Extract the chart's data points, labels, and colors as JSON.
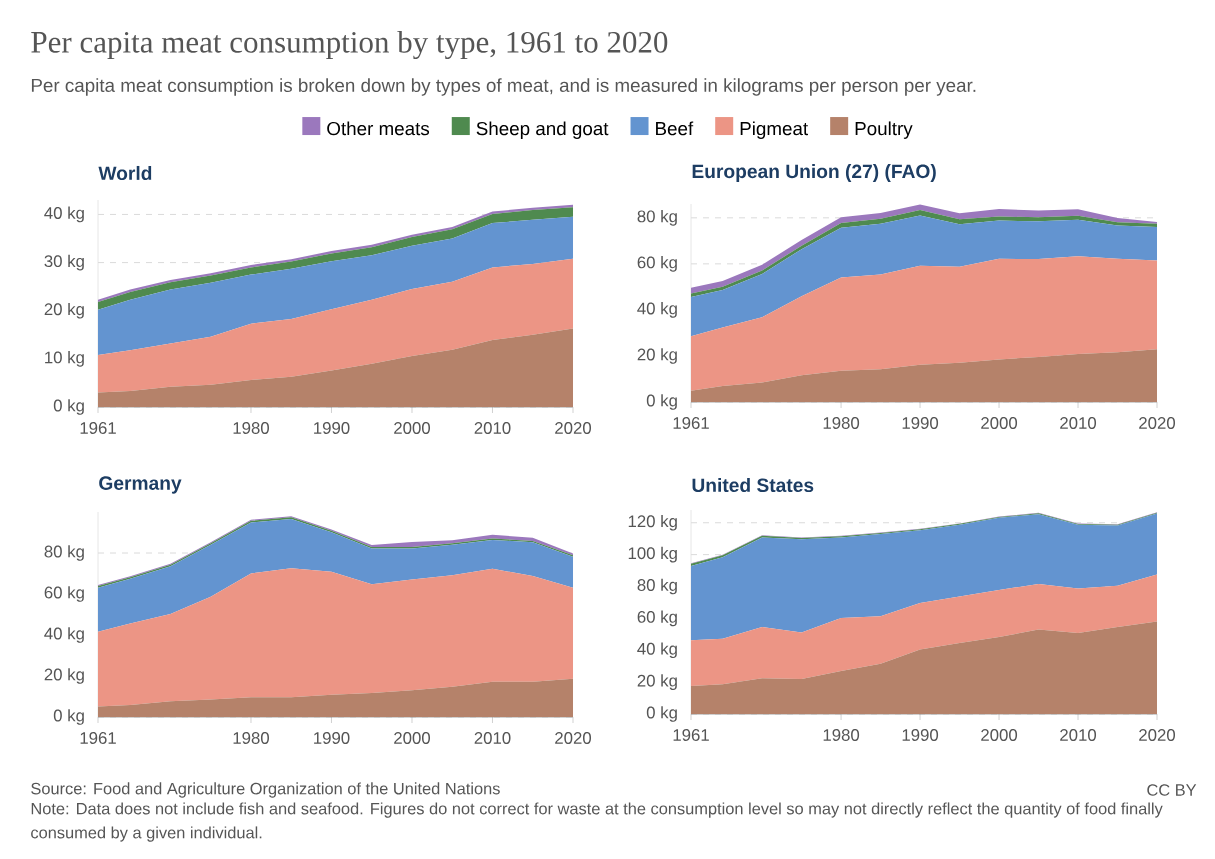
{
  "chart_data": [
    {
      "type": "area",
      "title": "World",
      "stacked": true,
      "grid": "y",
      "legend": "top",
      "annotations": [
        "Per capita meat consumption by type, 1961 to 2020",
        "Per capita meat consumption is broken down by types of meat, and is measured in kilograms per person per year.",
        "Source: Food and Agriculture Organization of the United Nations",
        "CC BY",
        "Note: Data does not include fish and seafood. Figures do not correct for waste at the consumption level so may not directly reflect the quantity of food finally consumed by a given individual."
      ],
      "x": [
        1961,
        1965,
        1970,
        1975,
        1980,
        1985,
        1990,
        1995,
        2000,
        2005,
        2010,
        2015,
        2020
      ],
      "xlim": [
        1961,
        2020
      ],
      "xticks": [
        1961,
        1980,
        1990,
        2000,
        2010,
        2020
      ],
      "ylim": [
        0,
        43
      ],
      "yticks": [
        {
          "value": 0,
          "label": "0 kg"
        },
        {
          "value": 10,
          "label": "10 kg"
        },
        {
          "value": 20,
          "label": "20 kg"
        },
        {
          "value": 30,
          "label": "30 kg"
        },
        {
          "value": 40,
          "label": "40 kg"
        }
      ],
      "series": [
        {
          "name": "Poultry",
          "color": "#b5826a",
          "values": [
            3.0,
            3.3,
            4.2,
            4.6,
            5.6,
            6.3,
            7.6,
            9.0,
            10.6,
            11.9,
            13.9,
            15.0,
            16.3
          ]
        },
        {
          "name": "Pigmeat",
          "color": "#ec9585",
          "values": [
            7.8,
            8.5,
            9.0,
            10.0,
            11.7,
            12.0,
            12.7,
            13.3,
            13.9,
            14.1,
            15.1,
            14.7,
            14.5
          ]
        },
        {
          "name": "Beef",
          "color": "#6394d0",
          "values": [
            9.4,
            10.5,
            11.2,
            11.2,
            10.2,
            10.4,
            10.0,
            9.2,
            9.0,
            9.0,
            9.2,
            9.2,
            8.7
          ]
        },
        {
          "name": "Sheep and goat",
          "color": "#4f8a4f",
          "values": [
            1.6,
            1.6,
            1.5,
            1.5,
            1.5,
            1.5,
            1.6,
            1.7,
            1.8,
            1.9,
            1.9,
            2.0,
            2.0
          ]
        },
        {
          "name": "Other meats",
          "color": "#9b78bd",
          "values": [
            0.5,
            0.5,
            0.5,
            0.5,
            0.5,
            0.5,
            0.5,
            0.5,
            0.5,
            0.5,
            0.5,
            0.5,
            0.5
          ]
        }
      ]
    },
    {
      "type": "area",
      "title": "European Union (27) (FAO)",
      "stacked": true,
      "grid": "y",
      "x": [
        1961,
        1965,
        1970,
        1975,
        1980,
        1985,
        1990,
        1995,
        2000,
        2005,
        2010,
        2015,
        2020
      ],
      "xlim": [
        1961,
        2020
      ],
      "xticks": [
        1961,
        1980,
        1990,
        2000,
        2010,
        2020
      ],
      "ylim": [
        0,
        86
      ],
      "yticks": [
        {
          "value": 0,
          "label": "0 kg"
        },
        {
          "value": 20,
          "label": "20 kg"
        },
        {
          "value": 40,
          "label": "40 kg"
        },
        {
          "value": 60,
          "label": "60 kg"
        },
        {
          "value": 80,
          "label": "80 kg"
        }
      ],
      "series": [
        {
          "color": "#b5826a",
          "values": [
            4.9,
            6.9,
            8.5,
            11.6,
            13.6,
            14.2,
            16.2,
            17.0,
            18.5,
            19.6,
            20.8,
            21.6,
            22.9
          ]
        },
        {
          "color": "#ec9585",
          "values": [
            23.7,
            25.5,
            28.3,
            34.3,
            40.5,
            41.2,
            43.0,
            41.7,
            43.7,
            42.5,
            42.5,
            40.6,
            38.6
          ]
        },
        {
          "color": "#6394d0",
          "values": [
            17.0,
            16.2,
            18.8,
            20.5,
            21.6,
            22.0,
            21.8,
            18.5,
            16.6,
            16.4,
            15.9,
            14.5,
            14.5
          ]
        },
        {
          "color": "#4f8a4f",
          "values": [
            1.5,
            1.5,
            1.5,
            1.5,
            2.0,
            2.2,
            2.4,
            2.2,
            1.8,
            1.7,
            1.7,
            1.4,
            1.4
          ]
        },
        {
          "color": "#9b78bd",
          "values": [
            2.5,
            2.5,
            2.5,
            2.5,
            2.6,
            2.5,
            2.4,
            2.6,
            3.2,
            3.0,
            2.8,
            1.8,
            0.8
          ]
        }
      ]
    },
    {
      "type": "area",
      "title": "Germany",
      "stacked": true,
      "grid": "y",
      "x": [
        1961,
        1965,
        1970,
        1975,
        1980,
        1985,
        1990,
        1995,
        2000,
        2005,
        2010,
        2015,
        2020
      ],
      "xlim": [
        1961,
        2020
      ],
      "xticks": [
        1961,
        1980,
        1990,
        2000,
        2010,
        2020
      ],
      "ylim": [
        0,
        100
      ],
      "yticks": [
        {
          "value": 0,
          "label": "0 kg"
        },
        {
          "value": 20,
          "label": "20 kg"
        },
        {
          "value": 40,
          "label": "40 kg"
        },
        {
          "value": 60,
          "label": "60 kg"
        },
        {
          "value": 80,
          "label": "80 kg"
        }
      ],
      "series": [
        {
          "color": "#b5826a",
          "values": [
            5.1,
            5.9,
            7.7,
            8.5,
            9.6,
            9.6,
            10.8,
            11.7,
            13.1,
            14.8,
            17.2,
            17.2,
            18.6
          ]
        },
        {
          "color": "#ec9585",
          "values": [
            36.5,
            39.7,
            42.6,
            50.2,
            60.4,
            63.0,
            60.1,
            53.1,
            54.0,
            54.4,
            55.1,
            51.6,
            44.5
          ]
        },
        {
          "color": "#6394d0",
          "values": [
            21.5,
            21.8,
            23.2,
            25.3,
            24.9,
            24.0,
            19.2,
            17.4,
            15.1,
            14.8,
            14.1,
            16.4,
            15.1
          ]
        },
        {
          "color": "#4f8a4f",
          "values": [
            0.8,
            0.8,
            0.8,
            0.8,
            0.8,
            0.8,
            0.8,
            0.7,
            0.7,
            0.7,
            0.7,
            0.7,
            0.7
          ]
        },
        {
          "color": "#9b78bd",
          "values": [
            0.5,
            0.5,
            0.5,
            0.5,
            0.5,
            0.5,
            0.6,
            1.0,
            2.5,
            1.5,
            1.8,
            1.5,
            0.8
          ]
        }
      ]
    },
    {
      "type": "area",
      "title": "United States",
      "stacked": true,
      "grid": "y",
      "x": [
        1961,
        1965,
        1970,
        1975,
        1980,
        1985,
        1990,
        1995,
        2000,
        2005,
        2010,
        2015,
        2020
      ],
      "xlim": [
        1961,
        2020
      ],
      "xticks": [
        1961,
        1980,
        1990,
        2000,
        2010,
        2020
      ],
      "ylim": [
        0,
        128
      ],
      "yticks": [
        {
          "value": 0,
          "label": "0 kg"
        },
        {
          "value": 20,
          "label": "20 kg"
        },
        {
          "value": 40,
          "label": "40 kg"
        },
        {
          "value": 60,
          "label": "60 kg"
        },
        {
          "value": 80,
          "label": "80 kg"
        },
        {
          "value": 100,
          "label": "100 kg"
        },
        {
          "value": 120,
          "label": "120 kg"
        }
      ],
      "series": [
        {
          "color": "#b5826a",
          "values": [
            17.5,
            18.7,
            22.5,
            22.0,
            27.0,
            31.5,
            40.4,
            44.5,
            48.3,
            53.0,
            50.8,
            54.6,
            58.0
          ]
        },
        {
          "color": "#ec9585",
          "values": [
            28.8,
            28.5,
            32.1,
            29.2,
            33.2,
            29.8,
            29.3,
            29.2,
            29.5,
            28.6,
            27.9,
            25.8,
            29.6
          ]
        },
        {
          "color": "#6394d0",
          "values": [
            46.5,
            51.2,
            56.2,
            58.5,
            50.6,
            51.7,
            45.6,
            45.0,
            45.3,
            43.8,
            40.0,
            37.8,
            38.2
          ]
        },
        {
          "color": "#4f8a4f",
          "values": [
            1.5,
            1.2,
            1.0,
            0.8,
            0.7,
            0.6,
            0.6,
            0.6,
            0.5,
            0.5,
            0.5,
            0.5,
            0.5
          ]
        },
        {
          "color": "#9b78bd",
          "values": [
            0.3,
            0.3,
            0.3,
            0.3,
            0.3,
            0.3,
            0.3,
            0.3,
            0.3,
            0.3,
            0.3,
            0.3,
            0.3
          ]
        }
      ]
    }
  ]
}
